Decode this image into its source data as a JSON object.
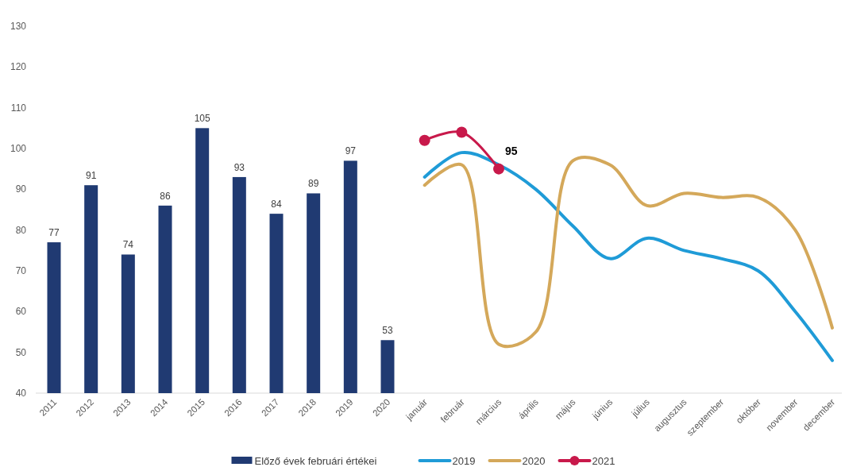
{
  "chart_data": {
    "type": "bar",
    "categories": [
      "2011",
      "2012",
      "2013",
      "2014",
      "2015",
      "2016",
      "2017",
      "2018",
      "2019",
      "2020",
      "január",
      "február",
      "március",
      "április",
      "május",
      "június",
      "július",
      "augusztus",
      "szeptember",
      "október",
      "november",
      "december"
    ],
    "ylim": [
      40,
      130
    ],
    "yticks": [
      40,
      50,
      60,
      70,
      80,
      90,
      100,
      110,
      120,
      130
    ],
    "grid": false,
    "legend": "bottom",
    "series": [
      {
        "name": "Előző évek februári értékei",
        "color": "#203a72",
        "values": [
          77,
          91,
          74,
          86,
          105,
          93,
          84,
          89,
          97,
          53,
          null,
          null,
          null,
          null,
          null,
          null,
          null,
          null,
          null,
          null,
          null,
          null
        ],
        "value_labels": [
          "77",
          "91",
          "74",
          "86",
          "105",
          "93",
          "84",
          "89",
          "97",
          "53",
          null,
          null,
          null,
          null,
          null,
          null,
          null,
          null,
          null,
          null,
          null,
          null
        ]
      },
      {
        "name": "2019",
        "type": "line",
        "color": "#1f9bd7",
        "marker": "none",
        "values": [
          null,
          null,
          null,
          null,
          null,
          null,
          null,
          null,
          null,
          null,
          93,
          99,
          96,
          90,
          81,
          73,
          78,
          75,
          73,
          70,
          60,
          48
        ]
      },
      {
        "name": "2020",
        "type": "line",
        "color": "#d4a85a",
        "marker": "none",
        "values": [
          null,
          null,
          null,
          null,
          null,
          null,
          null,
          null,
          null,
          null,
          91,
          96,
          52,
          55,
          97,
          96,
          86,
          89,
          88,
          88,
          80,
          56
        ]
      },
      {
        "name": "2021",
        "type": "line",
        "color": "#c8194b",
        "marker": "circle",
        "values": [
          null,
          null,
          null,
          null,
          null,
          null,
          null,
          null,
          null,
          null,
          102,
          104,
          95,
          null,
          null,
          null,
          null,
          null,
          null,
          null,
          null,
          null
        ],
        "value_labels": [
          null,
          null,
          null,
          null,
          null,
          null,
          null,
          null,
          null,
          null,
          null,
          null,
          "95",
          null,
          null,
          null,
          null,
          null,
          null,
          null,
          null,
          null
        ]
      }
    ]
  }
}
